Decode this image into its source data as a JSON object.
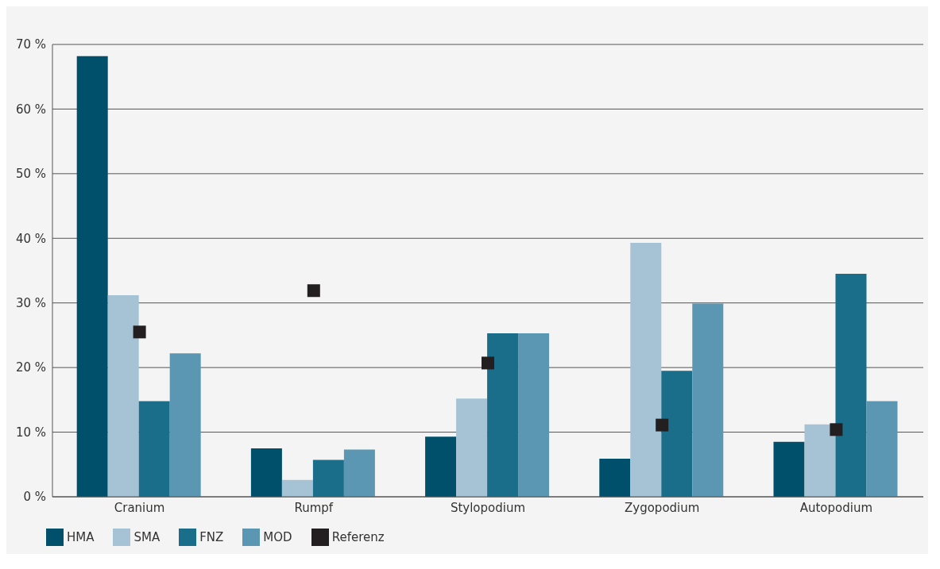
{
  "chart_data": {
    "type": "bar",
    "categories": [
      "Cranium",
      "Rumpf",
      "Stylopodium",
      "Zygopodium",
      "Autopodium"
    ],
    "series": [
      {
        "name": "HMA",
        "color": "#004f6b",
        "values": [
          68.2,
          7.5,
          9.3,
          5.9,
          8.5
        ]
      },
      {
        "name": "SMA",
        "color": "#a5c3d4",
        "values": [
          31.2,
          2.6,
          15.2,
          39.3,
          11.2
        ]
      },
      {
        "name": "FNZ",
        "color": "#1a6e8a",
        "values": [
          14.8,
          5.7,
          25.3,
          19.5,
          34.5
        ]
      },
      {
        "name": "MOD",
        "color": "#5b97b2",
        "values": [
          22.2,
          7.3,
          25.3,
          29.9,
          14.8
        ]
      },
      {
        "name": "Referenz",
        "color": "#231f20",
        "type": "scatter",
        "marker": "square",
        "x": [
          "Cranium",
          "Rumpf",
          "Stylopodium",
          "Zygopodium",
          "Autopodium"
        ],
        "values": [
          25.5,
          31.9,
          20.7,
          11.1,
          10.4
        ]
      }
    ],
    "ylim": [
      0,
      70
    ],
    "yticks": [
      {
        "value": 0,
        "label": "0 %"
      },
      {
        "value": 10,
        "label": "10 %"
      },
      {
        "value": 20,
        "label": "20 %"
      },
      {
        "value": 30,
        "label": "30 %"
      },
      {
        "value": 40,
        "label": "40 %"
      },
      {
        "value": 50,
        "label": "50 %"
      },
      {
        "value": 60,
        "label": "60 %"
      },
      {
        "value": 70,
        "label": "70 %"
      }
    ],
    "grid": "y",
    "legend": "bottom left"
  }
}
